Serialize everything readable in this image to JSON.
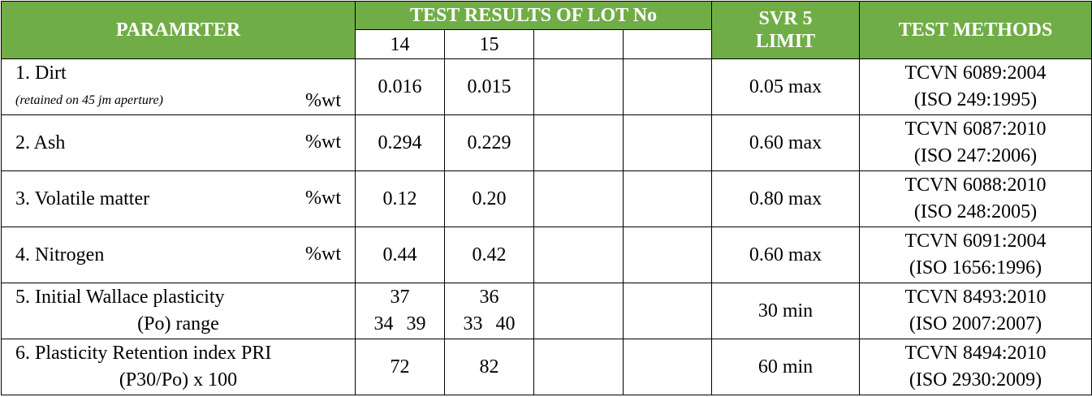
{
  "header": {
    "parameter": "PARAMRTER",
    "test_results": "TEST RESULTS OF LOT No",
    "lots": [
      "14",
      "15"
    ],
    "limit": "SVR 5 LIMIT",
    "methods": "TEST METHODS"
  },
  "rows": [
    {
      "name": [
        "1. Dirt"
      ],
      "note": "(retained on 45 jm aperture)",
      "unit": "%wt",
      "results": [
        [
          "0.016"
        ],
        [
          "0.015"
        ]
      ],
      "limit": "0.05 max",
      "method": [
        "TCVN 6089:2004",
        "(ISO 249:1995)"
      ]
    },
    {
      "name": [
        "2. Ash"
      ],
      "unit": "%wt",
      "results": [
        [
          "0.294"
        ],
        [
          "0.229"
        ]
      ],
      "limit": "0.60 max",
      "method": [
        "TCVN 6087:2010",
        "(ISO 247:2006)"
      ]
    },
    {
      "name": [
        "3. Volatile matter"
      ],
      "unit": "%wt",
      "results": [
        [
          "0.12"
        ],
        [
          "0.20"
        ]
      ],
      "limit": "0.80 max",
      "method": [
        "TCVN 6088:2010",
        "(ISO 248:2005)"
      ]
    },
    {
      "name": [
        "4. Nitrogen"
      ],
      "unit": "%wt",
      "results": [
        [
          "0.44"
        ],
        [
          "0.42"
        ]
      ],
      "limit": "0.60 max",
      "method": [
        "TCVN 6091:2004",
        "(ISO 1656:1996)"
      ]
    },
    {
      "name": [
        "5. Initial Wallace plasticity",
        "(Po) range"
      ],
      "results": [
        [
          "37",
          "34",
          "39"
        ],
        [
          "36",
          "33",
          "40"
        ]
      ],
      "limit": "30 min",
      "method": [
        "TCVN 8493:2010",
        "(ISO 2007:2007)"
      ]
    },
    {
      "name": [
        "6. Plasticity Retention index PRI",
        "(P30/Po) x 100"
      ],
      "results": [
        [
          "72"
        ],
        [
          "82"
        ]
      ],
      "limit": "60 min",
      "method": [
        "TCVN 8494:2010",
        "(ISO 2930:2009)"
      ]
    }
  ]
}
